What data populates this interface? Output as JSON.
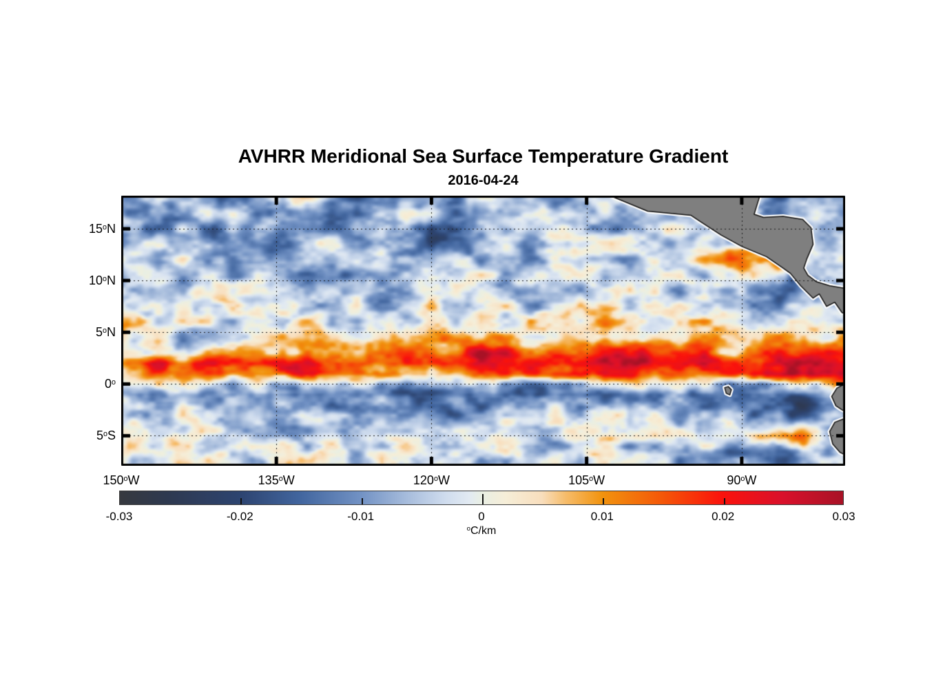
{
  "page": {
    "background": "#ffffff"
  },
  "chart_data": {
    "type": "heatmap",
    "title": "AVHRR Meridional Sea Surface Temperature Gradient",
    "subtitle": "2016-04-24",
    "colorbar": {
      "min": -0.03,
      "max": 0.03,
      "ticks": [
        -0.03,
        -0.02,
        -0.01,
        0,
        0.01,
        0.02,
        0.03
      ],
      "tick_labels": [
        "-0.03",
        "-0.02",
        "-0.01",
        "0",
        "0.01",
        "0.02",
        "0.03"
      ],
      "unit_sup": "o",
      "unit_text": "C/km"
    },
    "colormap_stops": [
      [
        -0.03,
        "#36393f"
      ],
      [
        -0.026,
        "#2e3950"
      ],
      [
        -0.02,
        "#2d4470"
      ],
      [
        -0.015,
        "#42669f"
      ],
      [
        -0.01,
        "#7292c4"
      ],
      [
        -0.006,
        "#a9bedd"
      ],
      [
        -0.003,
        "#cfdcee"
      ],
      [
        -0.001,
        "#e2eaf2"
      ],
      [
        0.0,
        "#e9efe4"
      ],
      [
        0.002,
        "#f6eed8"
      ],
      [
        0.005,
        "#f8debd"
      ],
      [
        0.007,
        "#f6bc6a"
      ],
      [
        0.01,
        "#f1930e"
      ],
      [
        0.015,
        "#f45708"
      ],
      [
        0.02,
        "#fa120c"
      ],
      [
        0.025,
        "#d9112b"
      ],
      [
        0.03,
        "#a81226"
      ]
    ],
    "axes": {
      "lon_min": -150,
      "lon_max": -80,
      "lat_min": -7.9,
      "lat_max": 18.2,
      "grid_lats": [
        15,
        10,
        5,
        0,
        -5
      ],
      "grid_lons": [
        -135,
        -120,
        -105,
        -90
      ],
      "yticks": [
        {
          "lat": 15,
          "num": "15",
          "deg": "o",
          "hem": "N"
        },
        {
          "lat": 10,
          "num": "10",
          "deg": "o",
          "hem": "N"
        },
        {
          "lat": 5,
          "num": "5",
          "deg": "o",
          "hem": "N"
        },
        {
          "lat": 0,
          "num": "0",
          "deg": "o",
          "hem": ""
        },
        {
          "lat": -5,
          "num": "5",
          "deg": "o",
          "hem": "S"
        }
      ],
      "xticks": [
        {
          "lon": -150,
          "num": "150",
          "deg": "o",
          "hem": "W"
        },
        {
          "lon": -135,
          "num": "135",
          "deg": "o",
          "hem": "W"
        },
        {
          "lon": -120,
          "num": "120",
          "deg": "o",
          "hem": "W"
        },
        {
          "lon": -105,
          "num": "105",
          "deg": "o",
          "hem": "W"
        },
        {
          "lon": -90,
          "num": "90",
          "deg": "o",
          "hem": "W"
        }
      ]
    },
    "field": {
      "units": "degC/km",
      "value_scale": 0.001,
      "lons": [
        -150,
        -145,
        -140,
        -135,
        -130,
        -125,
        -120,
        -115,
        -110,
        -105,
        -100,
        -95,
        -90,
        -85,
        -80
      ],
      "lats": [
        18,
        16,
        14,
        12,
        10,
        8,
        6,
        4.5,
        3,
        2,
        1,
        0,
        -1,
        -2,
        -3.5,
        -5,
        -6.5,
        -8
      ],
      "values_milli": [
        [
          -8,
          -4,
          -10,
          -6,
          -3,
          -12,
          -8,
          -4,
          -14,
          -10,
          -4,
          -6,
          -3,
          -12,
          -10
        ],
        [
          -5,
          -12,
          -6,
          -3,
          -14,
          -5,
          -9,
          -7,
          -3,
          -8,
          -4,
          -3,
          -6,
          -4,
          -6
        ],
        [
          -12,
          -7,
          -14,
          -8,
          -4,
          -10,
          -16,
          -9,
          -4,
          -3,
          -6,
          -3,
          -2,
          -3,
          -5
        ],
        [
          -5,
          -3,
          -8,
          -12,
          -6,
          -4,
          -9,
          -5,
          -3,
          -4,
          -3,
          -2,
          16,
          6,
          -3
        ],
        [
          -3,
          -7,
          -4,
          -3,
          -8,
          -3,
          -2,
          -4,
          -2,
          -3,
          -4,
          -2,
          6,
          -18,
          -4
        ],
        [
          -2,
          -4,
          -2,
          -6,
          -3,
          -8,
          -4,
          -2,
          -5,
          -2,
          -3,
          -2,
          -6,
          -12,
          -4
        ],
        [
          2,
          -1,
          -3,
          2,
          0,
          -3,
          1,
          -2,
          0,
          2,
          3,
          4,
          -2,
          8,
          6
        ],
        [
          8,
          -5,
          1,
          5,
          2,
          1,
          6,
          9,
          4,
          10,
          6,
          4,
          2,
          6,
          10
        ],
        [
          5,
          1,
          7,
          9,
          12,
          10,
          16,
          20,
          14,
          18,
          20,
          16,
          10,
          16,
          20
        ],
        [
          16,
          20,
          18,
          22,
          20,
          18,
          24,
          22,
          20,
          24,
          26,
          22,
          18,
          24,
          27
        ],
        [
          7,
          12,
          16,
          14,
          18,
          16,
          12,
          16,
          18,
          20,
          16,
          14,
          20,
          27,
          25
        ],
        [
          -5,
          -3,
          -2,
          -7,
          -5,
          -9,
          -7,
          -5,
          -9,
          -7,
          -3,
          -5,
          -11,
          -7,
          5
        ],
        [
          -12,
          -10,
          -9,
          -14,
          -11,
          -16,
          -14,
          -12,
          -16,
          -14,
          -9,
          -12,
          -16,
          -18,
          -9
        ],
        [
          -7,
          -5,
          -9,
          -7,
          -12,
          -9,
          -14,
          -11,
          -9,
          -7,
          -5,
          -9,
          -12,
          -20,
          -11
        ],
        [
          -3,
          -2,
          -5,
          -3,
          -2,
          -4,
          -5,
          -3,
          -4,
          -2,
          -3,
          -5,
          -7,
          -9,
          -14
        ],
        [
          -2,
          1,
          -3,
          -2,
          -4,
          -2,
          -3,
          -2,
          -5,
          -3,
          2,
          5,
          -3,
          14,
          -10
        ],
        [
          0,
          -2,
          0,
          -3,
          -2,
          0,
          -2,
          -4,
          -2,
          0,
          -2,
          -7,
          -16,
          -14,
          -7
        ],
        [
          -2,
          0,
          -2,
          0,
          -3,
          -2,
          0,
          -2,
          -3,
          -2,
          -4,
          -6,
          -10,
          -9,
          -5
        ]
      ]
    },
    "land": {
      "fill": "#7f7f7f",
      "outline": "#111111",
      "halo": "#ffffff",
      "polygons": [
        [
          [
            -103.1,
            18.35
          ],
          [
            -99.1,
            16.7
          ],
          [
            -94.9,
            16.3
          ],
          [
            -94.0,
            15.7
          ],
          [
            -92.0,
            14.4
          ],
          [
            -90.0,
            13.3
          ],
          [
            -87.6,
            12.3
          ],
          [
            -86.0,
            11.2
          ],
          [
            -85.3,
            10.7
          ],
          [
            -84.3,
            9.5
          ],
          [
            -83.7,
            8.9
          ],
          [
            -83.1,
            8.3
          ],
          [
            -82.5,
            8.7
          ],
          [
            -81.8,
            7.5
          ],
          [
            -81.0,
            7.9
          ],
          [
            -80.3,
            6.9
          ],
          [
            -79.7,
            6.7
          ],
          [
            -79.7,
            9.2
          ],
          [
            -81.5,
            9.5
          ],
          [
            -82.8,
            9.9
          ],
          [
            -83.6,
            10.5
          ],
          [
            -84.0,
            11.2
          ],
          [
            -83.7,
            12.1
          ],
          [
            -83.1,
            13.5
          ],
          [
            -83.3,
            15.1
          ],
          [
            -84.1,
            15.9
          ],
          [
            -86.0,
            16.2
          ],
          [
            -87.9,
            16.1
          ],
          [
            -88.8,
            16.4
          ],
          [
            -88.2,
            18.35
          ]
        ],
        [
          [
            -79.7,
            0.2
          ],
          [
            -80.8,
            -0.4
          ],
          [
            -81.3,
            -1.2
          ],
          [
            -80.9,
            -2.1
          ],
          [
            -80.3,
            -2.5
          ],
          [
            -79.7,
            -2.8
          ]
        ],
        [
          [
            -79.7,
            -3.2
          ],
          [
            -81.0,
            -3.7
          ],
          [
            -81.5,
            -4.6
          ],
          [
            -81.2,
            -5.8
          ],
          [
            -80.5,
            -6.6
          ],
          [
            -79.7,
            -7.0
          ]
        ],
        [
          [
            -91.65,
            -0.35
          ],
          [
            -91.3,
            -0.25
          ],
          [
            -91.0,
            -0.55
          ],
          [
            -91.15,
            -1.05
          ],
          [
            -91.5,
            -0.9
          ]
        ]
      ]
    }
  }
}
